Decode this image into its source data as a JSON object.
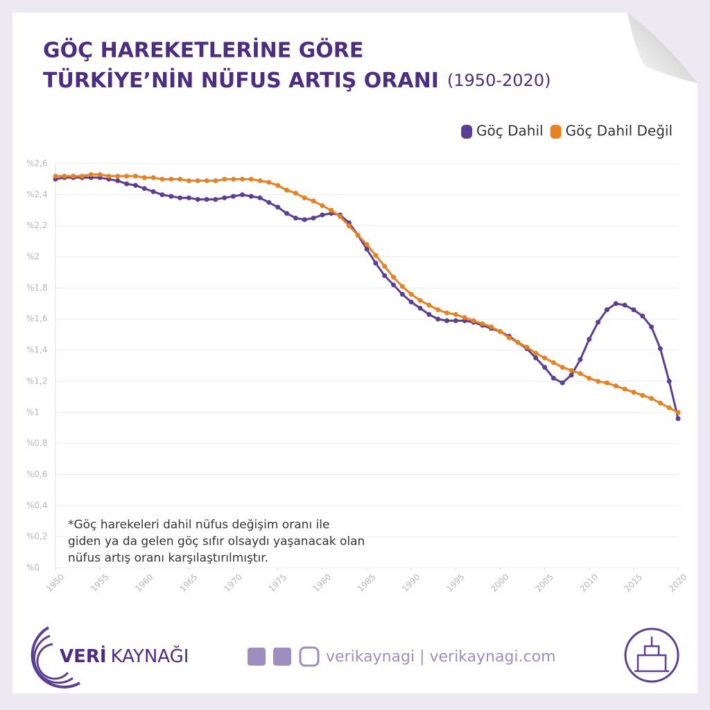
{
  "chart_data": {
    "type": "line",
    "title": [
      "GÖÇ HAREKETLERİNE GÖRE",
      "TÜRKİYE’NİN NÜFUS ARTIŞ ORANI"
    ],
    "subtitle": "(1950-2020)",
    "legend": "upper right",
    "grid": true,
    "x": [
      1950,
      1951,
      1952,
      1953,
      1954,
      1955,
      1956,
      1957,
      1958,
      1959,
      1960,
      1961,
      1962,
      1963,
      1964,
      1965,
      1966,
      1967,
      1968,
      1969,
      1970,
      1971,
      1972,
      1973,
      1974,
      1975,
      1976,
      1977,
      1978,
      1979,
      1980,
      1981,
      1982,
      1983,
      1984,
      1985,
      1986,
      1987,
      1988,
      1989,
      1990,
      1991,
      1992,
      1993,
      1994,
      1995,
      1996,
      1997,
      1998,
      1999,
      2000,
      2001,
      2002,
      2003,
      2004,
      2005,
      2006,
      2007,
      2008,
      2009,
      2010,
      2011,
      2012,
      2013,
      2014,
      2015,
      2016,
      2017,
      2018,
      2019,
      2020
    ],
    "xlim": [
      1950,
      2020
    ],
    "xticks": [
      1950,
      1955,
      1960,
      1965,
      1970,
      1975,
      1980,
      1985,
      1990,
      1995,
      2000,
      2005,
      2010,
      2015,
      2020
    ],
    "ylim": [
      0,
      2.6
    ],
    "yticks": [
      {
        "value": 0,
        "label": "%0"
      },
      {
        "value": 0.2,
        "label": "%0,2"
      },
      {
        "value": 0.4,
        "label": "%0,4"
      },
      {
        "value": 0.6,
        "label": "%0,6"
      },
      {
        "value": 0.8,
        "label": "%0,8"
      },
      {
        "value": 1,
        "label": "%1"
      },
      {
        "value": 1.2,
        "label": "%1,2"
      },
      {
        "value": 1.4,
        "label": "%1,4"
      },
      {
        "value": 1.6,
        "label": "%1,6"
      },
      {
        "value": 1.8,
        "label": "%1,8"
      },
      {
        "value": 2,
        "label": "%2"
      },
      {
        "value": 2.2,
        "label": "%2,2"
      },
      {
        "value": 2.4,
        "label": "%2,4"
      },
      {
        "value": 2.6,
        "label": "%2,6"
      }
    ],
    "series": [
      {
        "name": "Göç Dahil",
        "color": "#5b3f96",
        "values": [
          2.5,
          2.51,
          2.51,
          2.51,
          2.51,
          2.51,
          2.5,
          2.49,
          2.47,
          2.46,
          2.44,
          2.42,
          2.4,
          2.39,
          2.38,
          2.38,
          2.37,
          2.37,
          2.37,
          2.38,
          2.39,
          2.4,
          2.39,
          2.38,
          2.35,
          2.32,
          2.28,
          2.25,
          2.24,
          2.25,
          2.27,
          2.28,
          2.27,
          2.22,
          2.14,
          2.05,
          1.96,
          1.88,
          1.82,
          1.76,
          1.71,
          1.67,
          1.63,
          1.6,
          1.59,
          1.59,
          1.59,
          1.58,
          1.56,
          1.54,
          1.52,
          1.49,
          1.45,
          1.41,
          1.35,
          1.29,
          1.22,
          1.19,
          1.24,
          1.34,
          1.47,
          1.58,
          1.66,
          1.7,
          1.69,
          1.66,
          1.62,
          1.55,
          1.41,
          1.2,
          0.96
        ]
      },
      {
        "name": "Göç Dahil Değil",
        "color": "#e8821e",
        "values": [
          2.52,
          2.52,
          2.52,
          2.52,
          2.53,
          2.53,
          2.52,
          2.52,
          2.52,
          2.52,
          2.51,
          2.51,
          2.5,
          2.5,
          2.5,
          2.49,
          2.49,
          2.49,
          2.49,
          2.5,
          2.5,
          2.5,
          2.5,
          2.49,
          2.48,
          2.46,
          2.43,
          2.41,
          2.38,
          2.36,
          2.33,
          2.3,
          2.26,
          2.2,
          2.14,
          2.08,
          2.01,
          1.94,
          1.87,
          1.81,
          1.76,
          1.72,
          1.69,
          1.66,
          1.64,
          1.63,
          1.61,
          1.59,
          1.57,
          1.55,
          1.52,
          1.48,
          1.45,
          1.42,
          1.38,
          1.35,
          1.32,
          1.29,
          1.27,
          1.25,
          1.22,
          1.2,
          1.19,
          1.17,
          1.15,
          1.13,
          1.11,
          1.09,
          1.06,
          1.03,
          1.0
        ]
      }
    ],
    "note": [
      "*Göç harekeleri dahil nüfus değişim oranı ile",
      "giden ya da gelen göç sıfır olsaydı yaşanacak olan",
      "nüfus artış oranı karşılaştırılmıştır."
    ]
  },
  "footer": {
    "brand": [
      "VERİ",
      "KAYNAĞI"
    ],
    "social": "verikaynagi | verikaynagi.com"
  }
}
